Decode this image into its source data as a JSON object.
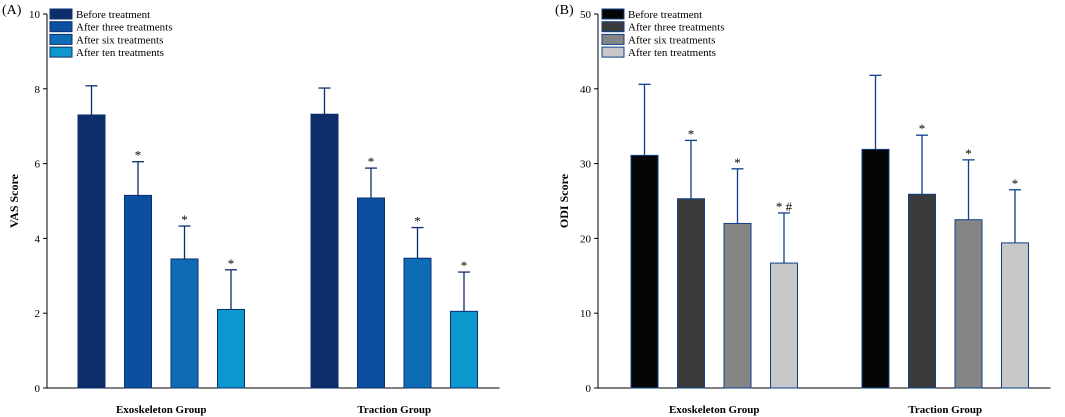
{
  "chart_data": [
    {
      "type": "bar",
      "panel_label": "(A)",
      "title": "",
      "xlabel": "",
      "ylabel": "VAS Score",
      "ylim": [
        0,
        10
      ],
      "yticks": [
        0,
        2,
        4,
        6,
        8,
        10
      ],
      "categories": [
        "Exoskeleton Group",
        "Traction Group"
      ],
      "series": [
        {
          "name": "Before treatment",
          "color": "#0d2e6b",
          "values": [
            7.3,
            7.32
          ],
          "errors": [
            0.78,
            0.7
          ],
          "marks": [
            "",
            ""
          ]
        },
        {
          "name": "After three treatments",
          "color": "#0b4fa0",
          "values": [
            5.15,
            5.08
          ],
          "errors": [
            0.9,
            0.8
          ],
          "marks": [
            "*",
            "*"
          ]
        },
        {
          "name": "After six treatments",
          "color": "#0d6cb4",
          "values": [
            3.45,
            3.47
          ],
          "errors": [
            0.88,
            0.82
          ],
          "marks": [
            "*",
            "*"
          ]
        },
        {
          "name": "After ten treatments",
          "color": "#0c97cf",
          "values": [
            2.1,
            2.05
          ],
          "errors": [
            1.06,
            1.05
          ],
          "marks": [
            "*",
            "*"
          ]
        }
      ],
      "legend": "top-left"
    },
    {
      "type": "bar",
      "panel_label": "(B)",
      "title": "",
      "xlabel": "",
      "ylabel": "ODI Score",
      "ylim": [
        0,
        50
      ],
      "yticks": [
        0,
        10,
        20,
        30,
        40,
        50
      ],
      "categories": [
        "Exoskeleton Group",
        "Traction Group"
      ],
      "series": [
        {
          "name": "Before treatment",
          "color": "#050505",
          "values": [
            31.1,
            31.9
          ],
          "errors": [
            9.5,
            9.9
          ],
          "marks": [
            "",
            ""
          ]
        },
        {
          "name": "After three treatments",
          "color": "#3b3b3b",
          "values": [
            25.3,
            25.9
          ],
          "errors": [
            7.8,
            7.9
          ],
          "marks": [
            "*",
            "*"
          ]
        },
        {
          "name": "After six treatments",
          "color": "#858585",
          "values": [
            22.0,
            22.5
          ],
          "errors": [
            7.3,
            8.0
          ],
          "marks": [
            "*",
            "*"
          ]
        },
        {
          "name": "After ten treatments",
          "color": "#c8c8c8",
          "values": [
            16.7,
            19.4
          ],
          "errors": [
            6.7,
            7.1
          ],
          "marks": [
            "* #",
            "*"
          ]
        }
      ],
      "legend": "top-left"
    }
  ]
}
